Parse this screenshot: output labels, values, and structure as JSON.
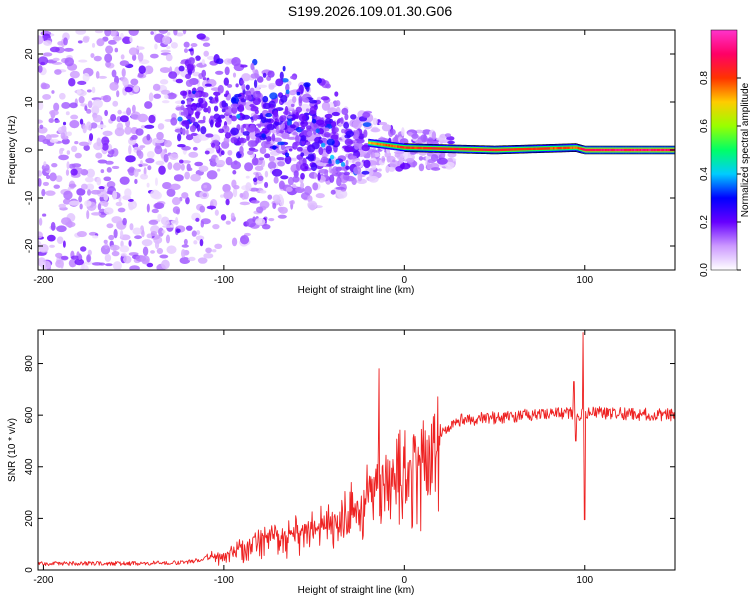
{
  "title": "S199.2026.109.01.30.G06",
  "chart_data": [
    {
      "type": "heatmap",
      "name": "spectrogram",
      "xlabel": "Height of straight line (km)",
      "ylabel": "Frequency (Hz)",
      "xlim": [
        -203,
        150
      ],
      "ylim": [
        -25,
        25
      ],
      "xticks": [
        -200,
        -100,
        0,
        100
      ],
      "yticks": [
        -20,
        -10,
        0,
        10,
        20
      ],
      "colorbar": {
        "label": "Normalized spectral amplitude",
        "range": [
          0,
          1
        ],
        "ticks": [
          0.0,
          0.2,
          0.4,
          0.6,
          0.8
        ],
        "stops": [
          "#ffffff",
          "#cc99ff",
          "#6600ff",
          "#0000ff",
          "#00ccff",
          "#00ff66",
          "#99ff00",
          "#ffcc00",
          "#ff3300",
          "#ff0066",
          "#ff33cc"
        ]
      },
      "ridge": [
        {
          "x": -20,
          "y": 1.5,
          "amp": 0.75
        },
        {
          "x": -10,
          "y": 1.0,
          "amp": 0.8
        },
        {
          "x": 0,
          "y": 0.5,
          "amp": 0.85
        },
        {
          "x": 50,
          "y": 0.0,
          "amp": 0.9
        },
        {
          "x": 95,
          "y": 0.5,
          "amp": 0.8
        },
        {
          "x": 100,
          "y": 0.0,
          "amp": 0.95
        },
        {
          "x": 150,
          "y": 0.0,
          "amp": 0.95
        }
      ]
    },
    {
      "type": "line",
      "name": "snr",
      "xlabel": "Height of straight line (km)",
      "ylabel": "SNR (10 * v/v)",
      "xlim": [
        -203,
        150
      ],
      "ylim": [
        0,
        930
      ],
      "xticks": [
        -200,
        -100,
        0,
        100
      ],
      "yticks": [
        0,
        200,
        400,
        600,
        800
      ],
      "color": "#ee2222",
      "series": [
        {
          "name": "SNR",
          "x": [
            -203,
            -150,
            -120,
            -100,
            -80,
            -60,
            -40,
            -25,
            -15,
            0,
            10,
            20,
            30,
            50,
            80,
            100,
            120,
            150
          ],
          "y": [
            25,
            25,
            30,
            60,
            120,
            150,
            180,
            260,
            350,
            400,
            470,
            540,
            580,
            590,
            605,
            610,
            605,
            600
          ]
        }
      ],
      "spikes": [
        {
          "x": -14,
          "y": 780
        },
        {
          "x": -13,
          "y": 180
        },
        {
          "x": 94,
          "y": 730
        },
        {
          "x": 95,
          "y": 500
        },
        {
          "x": 97,
          "y": 580
        },
        {
          "x": 99,
          "y": 920
        },
        {
          "x": 100,
          "y": 195
        },
        {
          "x": 101,
          "y": 590
        }
      ]
    }
  ]
}
